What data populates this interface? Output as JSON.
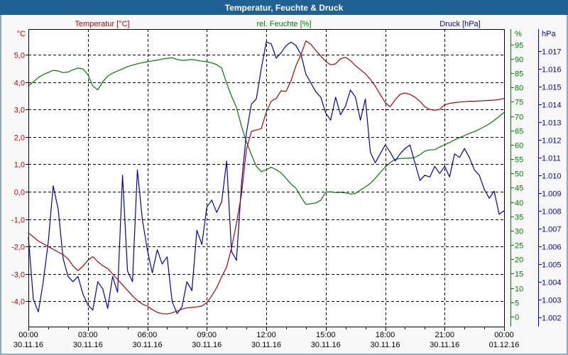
{
  "window": {
    "title": "Temperatur, Feuchte & Druck"
  },
  "colors": {
    "frame": "#1f6192",
    "titlebar_bg": "#1f6192",
    "titlebar_text": "#ffffff",
    "page_bg": "#f8f8f8",
    "plot_bg": "#ffffff",
    "grid": "#000000",
    "axis_black": "#000000",
    "temperature": "#b00000",
    "humidity": "#007a00",
    "pressure": "#0000bb",
    "temperature_label": "#c00000",
    "humidity_label": "#008000",
    "pressure_label": "#0000cc"
  },
  "chart_data": {
    "type": "line",
    "title": "Temperatur, Feuchte & Druck",
    "grid": true,
    "legend_position": "top",
    "x": {
      "unit": "hours",
      "range": [
        0,
        24
      ],
      "major_tick_hours": 3,
      "minor_tick_hours": 1,
      "tick_labels_time": [
        "00:00",
        "03:00",
        "06:00",
        "09:00",
        "12:00",
        "15:00",
        "18:00",
        "21:00",
        "00:00"
      ],
      "tick_labels_date": [
        "30.11.16",
        "30.11.16",
        "30.11.16",
        "30.11.16",
        "30.11.16",
        "30.11.16",
        "30.11.16",
        "30.11.16",
        "01.12.16"
      ]
    },
    "axes": {
      "temperature": {
        "label": "Temperatur [°C]",
        "unit": "°C",
        "side": "left",
        "tick_values": [
          5,
          4,
          3,
          2,
          1,
          0,
          -1,
          -2,
          -3,
          -4
        ],
        "tick_labels": [
          "5,0",
          "4,0",
          "3,0",
          "2,0",
          "1,0",
          "0,0",
          "-1,0",
          "-2,0",
          "-3,0",
          "-4,0"
        ],
        "plot_top_value": 5.93,
        "plot_bottom_value": -4.92
      },
      "humidity": {
        "label": "rel. Feuchte [%]",
        "unit": "%",
        "side": "right-inner",
        "tick_values": [
          95,
          90,
          85,
          80,
          75,
          70,
          65,
          60,
          55,
          50,
          45,
          40,
          35,
          30,
          25,
          20,
          15,
          10,
          5,
          0
        ],
        "tick_labels": [
          "95",
          "90",
          "85",
          "80",
          "75",
          "70",
          "65",
          "60",
          "55",
          "50",
          "45",
          "40",
          "35",
          "30",
          "25",
          "20",
          "15",
          "10",
          "5",
          "0"
        ],
        "plot_top_value": 100.4,
        "plot_bottom_value": -3.5
      },
      "pressure": {
        "label": "Druck [hPa]",
        "unit": "hPa",
        "side": "right-outer",
        "tick_values": [
          1.017,
          1.016,
          1.015,
          1.014,
          1.013,
          1.012,
          1.011,
          1.01,
          1.009,
          1.008,
          1.007,
          1.006,
          1.005,
          1.004,
          1.003,
          1.002
        ],
        "tick_labels": [
          "1.017",
          "1.016",
          "1.015",
          "1.014",
          "1.013",
          "1.012",
          "1.011",
          "1.010",
          "1.009",
          "1.008",
          "1.007",
          "1.006",
          "1.005",
          "1.004",
          "1.003",
          "1.002"
        ],
        "plot_top_value": 1.01823,
        "plot_bottom_value": 1.00147
      }
    },
    "series": [
      {
        "name": "Temperatur",
        "axis": "temperature",
        "color": "#b00000",
        "start_hour": 0,
        "interval_minutes": 15,
        "values": [
          -1.5,
          -1.65,
          -1.8,
          -1.9,
          -2.0,
          -2.1,
          -2.2,
          -2.3,
          -2.45,
          -2.7,
          -2.88,
          -2.72,
          -2.5,
          -2.37,
          -2.55,
          -2.7,
          -2.8,
          -3.0,
          -3.2,
          -3.4,
          -3.6,
          -3.8,
          -3.97,
          -4.1,
          -4.17,
          -4.3,
          -4.4,
          -4.45,
          -4.46,
          -4.42,
          -4.35,
          -4.28,
          -4.24,
          -4.22,
          -4.2,
          -4.17,
          -4.05,
          -3.8,
          -3.5,
          -3.1,
          -2.75,
          -2.05,
          -1.15,
          -0.1,
          1.55,
          2.2,
          2.25,
          2.3,
          2.9,
          3.3,
          3.4,
          3.68,
          3.66,
          4.05,
          4.6,
          5.0,
          5.5,
          5.38,
          5.15,
          4.95,
          4.75,
          4.63,
          4.66,
          4.85,
          4.9,
          4.78,
          4.6,
          4.45,
          4.3,
          4.1,
          3.85,
          3.55,
          3.25,
          3.1,
          3.35,
          3.55,
          3.6,
          3.55,
          3.45,
          3.3,
          3.1,
          3.0,
          2.97,
          3.0,
          3.17,
          3.22,
          3.25,
          3.27,
          3.28,
          3.3,
          3.3,
          3.31,
          3.32,
          3.33,
          3.34,
          3.36,
          3.4
        ]
      },
      {
        "name": "rel. Feuchte",
        "axis": "humidity",
        "color": "#007a00",
        "start_hour": 0,
        "interval_minutes": 15,
        "values": [
          80.5,
          82,
          83.5,
          84.5,
          85.3,
          86,
          85.8,
          85.2,
          85.4,
          86.2,
          86.8,
          86.5,
          84.5,
          80.5,
          79.2,
          82,
          84,
          85,
          85.8,
          86.5,
          87.3,
          87.8,
          88.3,
          88.7,
          89,
          89.3,
          89.6,
          89.9,
          90.2,
          90.4,
          89.8,
          89.5,
          89.6,
          89.8,
          89.5,
          89.2,
          89,
          88.6,
          88,
          86.8,
          81.5,
          77,
          73,
          66.5,
          61,
          56.5,
          52.5,
          50.6,
          51.3,
          52.2,
          51.3,
          50.2,
          48.3,
          46.3,
          44.8,
          41.8,
          39.2,
          39.4,
          39.7,
          40.6,
          43.5,
          43.6,
          43.3,
          43.4,
          43.2,
          42.8,
          43,
          44.2,
          45.3,
          46.5,
          48.3,
          50.3,
          52.2,
          53.8,
          54.9,
          55.2,
          55.3,
          55.3,
          55.6,
          56.5,
          57.8,
          58.2,
          58.3,
          59.2,
          60,
          60.8,
          61.7,
          62.5,
          63.2,
          64,
          64.6,
          65.4,
          66.3,
          67.3,
          68.5,
          69.9,
          71.3
        ]
      },
      {
        "name": "Druck",
        "axis": "pressure",
        "color": "#0000bb",
        "start_hour": 0,
        "interval_minutes": 15,
        "values": [
          1.0065,
          1.003,
          1.0023,
          1.004,
          1.0062,
          1.0094,
          1.0081,
          1.0053,
          1.0043,
          1.004,
          1.0043,
          1.0033,
          1.0027,
          1.0024,
          1.004,
          1.0036,
          1.0025,
          1.0043,
          1.0034,
          1.01,
          1.0046,
          1.004,
          1.0103,
          1.0075,
          1.0058,
          1.0045,
          1.0058,
          1.005,
          1.0054,
          1.0029,
          1.0022,
          1.0026,
          1.004,
          1.0035,
          1.0069,
          1.0061,
          1.0082,
          1.0086,
          1.0079,
          1.0085,
          1.0108,
          1.0057,
          1.0052,
          1.0095,
          1.0124,
          1.014,
          1.0143,
          1.016,
          1.0175,
          1.0174,
          1.0166,
          1.0169,
          1.0173,
          1.0175,
          1.0173,
          1.0168,
          1.0157,
          1.0152,
          1.0147,
          1.0144,
          1.0135,
          1.0131,
          1.0144,
          1.0134,
          1.0139,
          1.0148,
          1.0144,
          1.0131,
          1.0143,
          1.0113,
          1.0107,
          1.0112,
          1.0117,
          1.0113,
          1.0108,
          1.0112,
          1.0115,
          1.0117,
          1.0107,
          1.0097,
          1.01,
          1.0099,
          1.0105,
          1.0101,
          1.0105,
          1.0099,
          1.0112,
          1.011,
          1.0115,
          1.011,
          1.0103,
          1.01,
          1.0092,
          1.0087,
          1.0091,
          1.0078,
          1.008
        ]
      }
    ]
  }
}
